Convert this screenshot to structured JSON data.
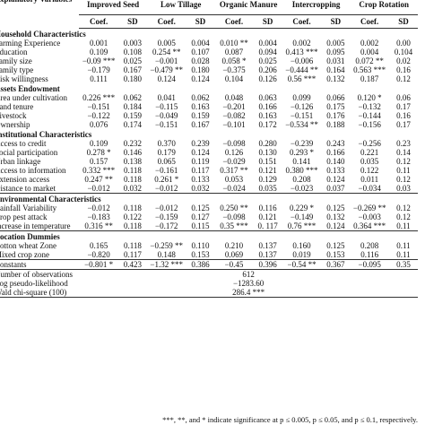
{
  "header": {
    "variables_label": "Explanatory Variables",
    "columns": [
      {
        "model": "Improved Seed",
        "coef_label": "Coef.",
        "sd_label": "SD"
      },
      {
        "model": "Low Tillage",
        "coef_label": "Coef.",
        "sd_label": "SD"
      },
      {
        "model": "Organic Manure",
        "coef_label": "Coef.",
        "sd_label": "SD"
      },
      {
        "model": "Intercropping",
        "coef_label": "Coef.",
        "sd_label": "SD"
      },
      {
        "model": "Crop Rotation",
        "coef_label": "Coef.",
        "sd_label": "SD"
      }
    ]
  },
  "rows": [
    {
      "section": "Household Characteristics"
    },
    {
      "label": "Farming Experience",
      "values": [
        "0.001",
        "0.003",
        "0.005",
        "0.004",
        "0.010 **",
        "0.004",
        "0.002",
        "0.005",
        "0.002",
        "0.00"
      ]
    },
    {
      "label": "Education",
      "values": [
        "0.109",
        "0.108",
        "0.254 **",
        "0.107",
        "0.087",
        "0.094",
        "0.413 ***",
        "0.095",
        "0.004",
        "0.104"
      ]
    },
    {
      "label": "Family size",
      "values": [
        "−0.09 ***",
        "0.025",
        "−0.001",
        "0.028",
        "0.058 *",
        "0.025",
        "−0.006",
        "0.031",
        "0.072 **",
        "0.02"
      ]
    },
    {
      "label": "Family type",
      "values": [
        "−0.179",
        "0.167",
        "−0.479 **",
        "0.180",
        "−0.375",
        "0.206",
        "−0.444 **",
        "0.164",
        "0.563 ***",
        "0.16"
      ]
    },
    {
      "label": "Risk willingness",
      "values": [
        "0.111",
        "0.180",
        "0.124",
        "0.124",
        "0.104",
        "0.126",
        "0.56 ***",
        "0.132",
        "0.187",
        "0.12"
      ]
    },
    {
      "section": "Assets Endowment"
    },
    {
      "label": "Area under cultivation",
      "values": [
        "0.226 ***",
        "0.062",
        "0.041",
        "0.062",
        "0.048",
        "0.063",
        "0.099",
        "0.066",
        "0.120 *",
        "0.06"
      ]
    },
    {
      "label": "Land tenure",
      "values": [
        "−0.151",
        "0.184",
        "−0.115",
        "0.163",
        "−0.201",
        "0.166",
        "−0.126",
        "0.175",
        "−0.132",
        "0.17"
      ]
    },
    {
      "label": "Livestock",
      "values": [
        "−0.122",
        "0.159",
        "−0.049",
        "0.159",
        "−0.082",
        "0.163",
        "−0.151",
        "0.176",
        "−0.144",
        "0.16"
      ]
    },
    {
      "label": "Ownership",
      "values": [
        "0.076",
        "0.174",
        "−0.151",
        "0.167",
        "−0.101",
        "0.172",
        "−0.534 **",
        "0.188",
        "−0.156",
        "0.17"
      ]
    },
    {
      "section": "Institutional Characteristics"
    },
    {
      "label": "Access to credit",
      "values": [
        "0.109",
        "0.232",
        "0.370",
        "0.239",
        "−0.098",
        "0.280",
        "−0.239",
        "0.243",
        "−0.256",
        "0.23"
      ]
    },
    {
      "label": "Social participation",
      "values": [
        "0.278 *",
        "0.146",
        "0.179",
        "0.124",
        "0.126",
        "0.130",
        "0.293 *",
        "0.166",
        "0.221",
        "0.14"
      ]
    },
    {
      "label": "Urban linkage",
      "values": [
        "0.157",
        "0.138",
        "0.065",
        "0.119",
        "−0.029",
        "0.151",
        "0.141",
        "0.140",
        "0.035",
        "0.12"
      ]
    },
    {
      "label": "Access to information",
      "values": [
        "0.332 ***",
        "0.118",
        "−0.161",
        "0.117",
        "0.317 **",
        "0.121",
        "0.380 ***",
        "0.133",
        "0.122",
        "0.11"
      ]
    },
    {
      "label": "Extension access",
      "values": [
        "0.247 **",
        "0.118",
        "0.261 *",
        "0.133",
        "0.053",
        "0.129",
        "0.208",
        "0.124",
        "0.011",
        "0.12"
      ]
    },
    {
      "label": "Distance to market",
      "values": [
        "−0.012",
        "0.032",
        "−0.012",
        "0.032",
        "−0.024",
        "0.035",
        "−0.023",
        "0.037",
        "−0.034",
        "0.03"
      ]
    },
    {
      "section": "Environmental Characteristics"
    },
    {
      "label": "Rainfall Variability",
      "values": [
        "−0.012",
        "0.118",
        "−0.012",
        "0.125",
        "0.250 **",
        "0.116",
        "0.229 *",
        "0.125",
        "−0.269 **",
        "0.12"
      ]
    },
    {
      "label": "Crop pest attack",
      "values": [
        "−0.183",
        "0.122",
        "−0.159",
        "0.127",
        "−0.098",
        "0.121",
        "−0.149",
        "0.132",
        "−0.003",
        "0.12"
      ]
    },
    {
      "label": "Increase in temperature",
      "values": [
        "0.316 **",
        "0.118",
        "−0.172",
        "0.115",
        "0.35 ***",
        "0. 117",
        "0.76 ***",
        "0.124",
        "0.364 ***",
        "0.11"
      ]
    },
    {
      "section": "Location Dummies"
    },
    {
      "label": "Cotton wheat Zone",
      "values": [
        "0.165",
        "0.118",
        "−0.259 **",
        "0.110",
        "0.210",
        "0.137",
        "0.160",
        "0.125",
        "0.208",
        "0.11"
      ]
    },
    {
      "label": "Mixed crop zone",
      "values": [
        "−0.820",
        "0.117",
        "0.148",
        "0.153",
        "0.069",
        "0.137",
        "0.019",
        "0.153",
        "0.116",
        "0.11"
      ]
    },
    {
      "label": "Constants",
      "values": [
        "−0.801 *",
        "0.423",
        "−1.32 ***",
        "0.386",
        "−0.45",
        "0.396",
        "−0.54 **",
        "0.367",
        "−0.095",
        "0.35"
      ]
    }
  ],
  "summary": [
    {
      "label": "Number of observations",
      "value": "612"
    },
    {
      "label": "Log pseudo-likelihood",
      "value": "−1283.60"
    },
    {
      "label": "Wald chi-square (100)",
      "value": "286.4 ***"
    }
  ],
  "footnote": "***, **, and * indicate significance at p ≤ 0.005, p ≤ 0.05, and p ≤ 0.1, respectively."
}
